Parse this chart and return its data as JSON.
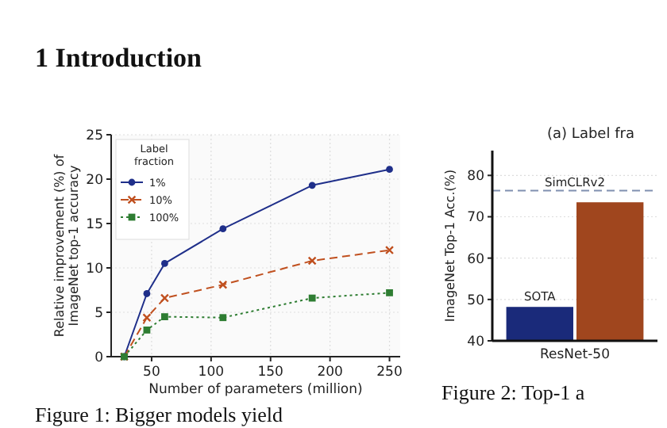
{
  "chart_data": [
    {
      "type": "line",
      "xlabel": "Number of parameters (million)",
      "ylabel": "Relative improvement (%) of\nImageNet top-1 accuracy",
      "legend_title": "Label fraction",
      "legend": "top left",
      "grid": true,
      "x": [
        27,
        46,
        61,
        110,
        185,
        250
      ],
      "xlim": [
        16,
        259
      ],
      "xticks": [
        50,
        100,
        150,
        200,
        250
      ],
      "ylim": [
        0,
        25
      ],
      "yticks": [
        0,
        5,
        10,
        15,
        20,
        25
      ],
      "series": [
        {
          "name": "1%",
          "color": "#1f2f8a",
          "marker": "circle",
          "line_style": "solid",
          "values": [
            0,
            7.1,
            10.5,
            14.4,
            19.3,
            21.1
          ]
        },
        {
          "name": "10%",
          "color": "#c0501f",
          "marker": "cross",
          "line_style": "dashed",
          "values": [
            0,
            4.4,
            6.6,
            8.1,
            10.8,
            12.0
          ]
        },
        {
          "name": "100%",
          "color": "#2e7d32",
          "marker": "square",
          "line_style": "dotted",
          "values": [
            0,
            3.0,
            4.5,
            4.4,
            6.6,
            7.2
          ]
        }
      ],
      "annotations": [
        "1 Introduction",
        "Figure 1: Bigger models yield"
      ]
    },
    {
      "type": "bar",
      "title": "(a) Label fra",
      "ylabel": "ImageNet Top-1 Acc.(%)",
      "grid": "y",
      "categories": [
        "ResNet-50"
      ],
      "ylim": [
        40,
        86
      ],
      "yticks": [
        40,
        50,
        60,
        70,
        80
      ],
      "series": [
        {
          "name": "SOTA",
          "color": "#1a2a7a",
          "values": [
            48.2
          ]
        },
        {
          "color": "#a0461e",
          "values": [
            73.5
          ]
        }
      ],
      "ref_lines": [
        {
          "axis": "y",
          "value": 76.3,
          "label": "SimCLRv2",
          "color": "#8090b0",
          "line_style": "dashed"
        }
      ],
      "annotations": [
        "Figure 2: Top-1 a"
      ]
    }
  ]
}
